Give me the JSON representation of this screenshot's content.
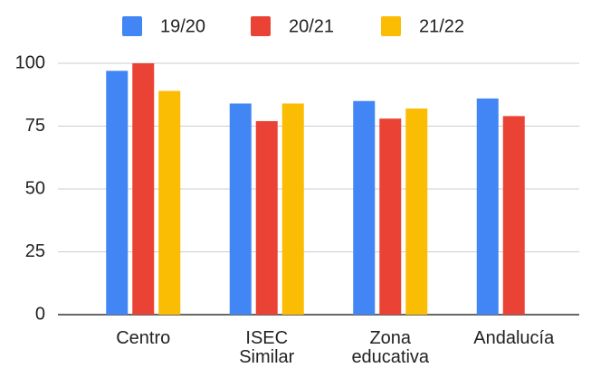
{
  "chart_data": {
    "type": "bar",
    "categories": [
      "Centro",
      "ISEC Similar",
      "Zona educativa",
      "Andalucía"
    ],
    "series": [
      {
        "name": "19/20",
        "color": "#4285f4",
        "values": [
          97,
          84,
          85,
          86
        ]
      },
      {
        "name": "20/21",
        "color": "#ea4335",
        "values": [
          100,
          77,
          78,
          79
        ]
      },
      {
        "name": "21/22",
        "color": "#fbbc04",
        "values": [
          89,
          84,
          82,
          null
        ]
      }
    ],
    "ylim": [
      0,
      100
    ],
    "yticks": [
      0,
      25,
      50,
      75,
      100
    ],
    "grid": true,
    "legend": "top"
  }
}
